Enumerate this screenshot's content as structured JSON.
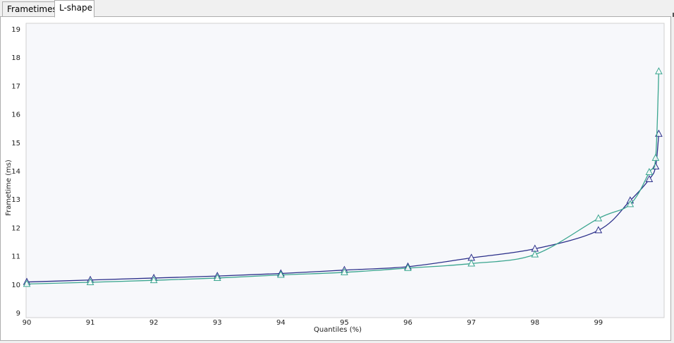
{
  "tabs": [
    {
      "label": "Frametimes",
      "active": false
    },
    {
      "label": "L-shape",
      "active": true
    }
  ],
  "chart_data": {
    "type": "line",
    "title": "",
    "xlabel": "Quantiles (%)",
    "ylabel": "Frametime (ms)",
    "xlim": [
      90,
      99.99
    ],
    "ylim": [
      9,
      19
    ],
    "x_ticks": [
      90,
      91,
      92,
      93,
      94,
      95,
      96,
      97,
      98,
      99
    ],
    "y_ticks": [
      9,
      10,
      11,
      12,
      13,
      14,
      15,
      16,
      17,
      18,
      19
    ],
    "grid": false,
    "legend": "none",
    "marker": "triangle",
    "series": [
      {
        "color": "#2b2f8a",
        "points": [
          [
            90,
            10.08
          ],
          [
            91,
            10.15
          ],
          [
            92,
            10.22
          ],
          [
            93,
            10.29
          ],
          [
            94,
            10.38
          ],
          [
            95,
            10.5
          ],
          [
            96,
            10.62
          ],
          [
            97,
            10.93
          ],
          [
            98,
            11.25
          ],
          [
            99,
            11.9
          ],
          [
            99.5,
            12.95
          ],
          [
            99.8,
            13.7
          ],
          [
            99.9,
            14.15
          ],
          [
            99.95,
            15.3
          ]
        ]
      },
      {
        "color": "#3aa58f",
        "points": [
          [
            90,
            10.01
          ],
          [
            91,
            10.07
          ],
          [
            92,
            10.14
          ],
          [
            93,
            10.22
          ],
          [
            94,
            10.33
          ],
          [
            95,
            10.42
          ],
          [
            96,
            10.57
          ],
          [
            97,
            10.73
          ],
          [
            98,
            11.05
          ],
          [
            99,
            12.32
          ],
          [
            99.5,
            12.82
          ],
          [
            99.8,
            13.95
          ],
          [
            99.9,
            14.45
          ],
          [
            99.95,
            17.5
          ]
        ]
      }
    ]
  }
}
